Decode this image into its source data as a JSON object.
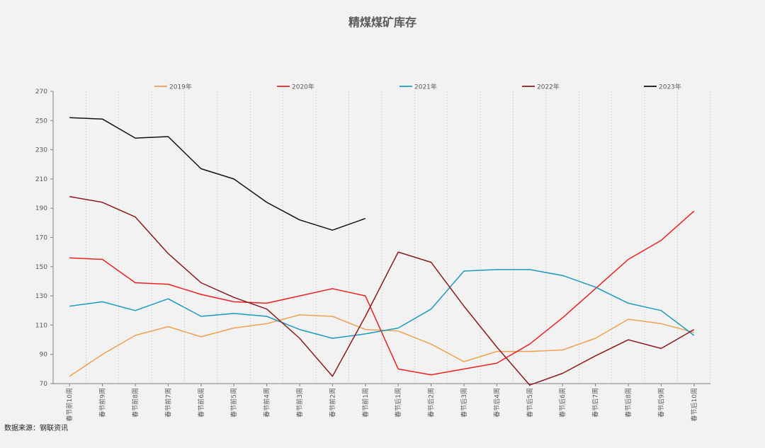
{
  "chart_data": {
    "type": "line",
    "title": "精煤煤矿库存",
    "xlabel": "",
    "ylabel": "",
    "ylim": [
      70,
      270
    ],
    "yticks": [
      70,
      90,
      110,
      130,
      150,
      170,
      190,
      210,
      230,
      250,
      270
    ],
    "grid": "vertical-dashed",
    "legend": "top",
    "categories": [
      "春节前10周",
      "春节前9周",
      "春节前8周",
      "春节前7周",
      "春节前6周",
      "春节前5周",
      "春节前4周",
      "春节前3周",
      "春节前2周",
      "春节前1周",
      "春节后1周",
      "春节后2周",
      "春节后3周",
      "春节后4周",
      "春节后5周",
      "春节后6周",
      "春节后7周",
      "春节后8周",
      "春节后9周",
      "春节后10周"
    ],
    "series": [
      {
        "name": "2019年",
        "color": "#f0a050",
        "values": [
          75,
          90,
          103,
          109,
          102,
          108,
          111,
          117,
          116,
          107,
          106,
          97,
          85,
          92,
          92,
          93,
          101,
          114,
          111,
          105
        ]
      },
      {
        "name": "2020年",
        "color": "#ee2020",
        "values": [
          156,
          155,
          139,
          138,
          131,
          126,
          125,
          130,
          135,
          130,
          80,
          76,
          80,
          84,
          97,
          115,
          135,
          155,
          168,
          188
        ]
      },
      {
        "name": "2021年",
        "color": "#1a9bbf",
        "values": [
          123,
          126,
          120,
          128,
          116,
          118,
          116,
          107,
          101,
          104,
          108,
          121,
          147,
          148,
          148,
          144,
          136,
          125,
          120,
          103
        ]
      },
      {
        "name": "2022年",
        "color": "#8b1a1a",
        "values": [
          198,
          194,
          184,
          159,
          139,
          129,
          121,
          101,
          75,
          116,
          160,
          153,
          123,
          95,
          69,
          77,
          89,
          100,
          94,
          107
        ]
      },
      {
        "name": "2023年",
        "color": "#111111",
        "values": [
          252,
          251,
          238,
          239,
          217,
          210,
          194,
          182,
          175,
          183,
          null,
          null,
          null,
          null,
          null,
          null,
          null,
          null,
          null,
          null
        ]
      }
    ],
    "source": "数据来源：钢联资讯"
  }
}
